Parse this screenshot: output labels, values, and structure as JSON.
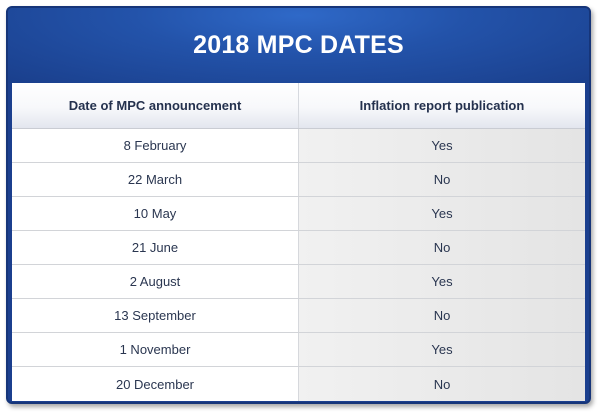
{
  "title": "2018 MPC DATES",
  "columns": [
    "Date of MPC announcement",
    "Inflation report publication"
  ],
  "rows": [
    {
      "date": "8 February",
      "inflation_report": "Yes"
    },
    {
      "date": "22 March",
      "inflation_report": "No"
    },
    {
      "date": "10 May",
      "inflation_report": "Yes"
    },
    {
      "date": "21 June",
      "inflation_report": "No"
    },
    {
      "date": "2 August",
      "inflation_report": "Yes"
    },
    {
      "date": "13 September",
      "inflation_report": "No"
    },
    {
      "date": "1 November",
      "inflation_report": "Yes"
    },
    {
      "date": "20 December",
      "inflation_report": "No"
    }
  ],
  "colors": {
    "frame": "#1b3f8e",
    "title_text": "#ffffff",
    "body_text": "#2a3650",
    "alt_column": "#e8e8e8"
  }
}
